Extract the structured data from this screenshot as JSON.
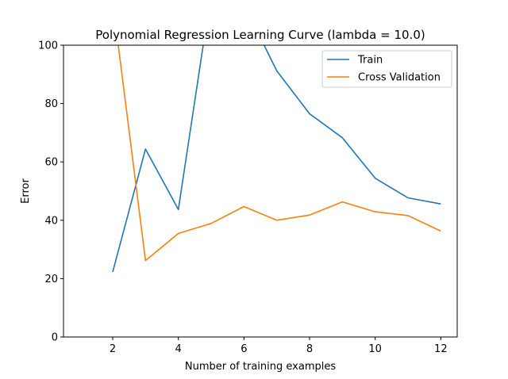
{
  "chart_data": {
    "type": "line",
    "title": "Polynomial Regression Learning Curve (lambda = 10.0)",
    "xlabel": "Number of training examples",
    "ylabel": "Error",
    "xlim": [
      0.5,
      12.5
    ],
    "ylim": [
      0,
      100
    ],
    "xticks": [
      2,
      4,
      6,
      8,
      10,
      12
    ],
    "yticks": [
      0,
      20,
      40,
      60,
      80,
      100
    ],
    "grid": false,
    "legend_position": "top-right",
    "x": [
      2,
      3,
      4,
      5,
      6,
      7,
      8,
      9,
      10,
      11,
      12
    ],
    "series": [
      {
        "name": "Train",
        "color": "#1f77b4",
        "values": [
          22.3,
          64.4,
          43.7,
          118,
          114,
          91.2,
          76.5,
          68.3,
          54.4,
          47.7,
          45.6
        ]
      },
      {
        "name": "Cross Validation",
        "color": "#ff7f0e",
        "values": [
          115,
          26.2,
          35.5,
          38.9,
          44.7,
          40.0,
          41.8,
          46.3,
          42.9,
          41.6,
          36.3
        ]
      }
    ]
  }
}
